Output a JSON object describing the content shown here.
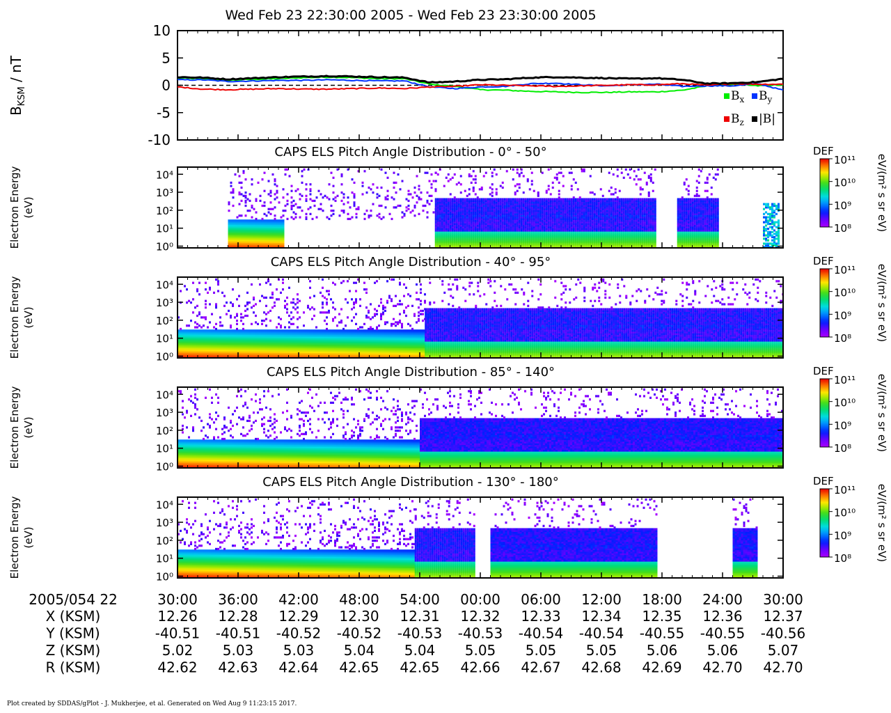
{
  "title": "Wed Feb 23 22:30:00 2005 - Wed Feb 23 23:30:00 2005",
  "footer": "Plot created by SDDAS/gPlot - J. Mukherjee, et al.  Generated on Wed Aug 9 11:23:15 2017.",
  "colors": {
    "bx": "#00ee00",
    "by": "#0033ff",
    "bz": "#ee0000",
    "bmag": "#000000"
  },
  "chart_data": [
    {
      "type": "line",
      "ylabel": "B_KSM / nT",
      "ylim": [
        -10,
        10
      ],
      "yticks": [
        10,
        5,
        0,
        -5,
        -10
      ],
      "zero_line": "dashed",
      "x_minutes": [
        0,
        2.5,
        5,
        7.5,
        10,
        12.5,
        15,
        17.5,
        20,
        22.5,
        25,
        27.5,
        30,
        32.5,
        35,
        37.5,
        40,
        42.5,
        45,
        47.5,
        50,
        52.5,
        55,
        57.5,
        60
      ],
      "series": [
        {
          "name": "B_x",
          "legend": "Bx",
          "values": [
            1.3,
            1.2,
            0.9,
            1.1,
            1.2,
            1.4,
            1.5,
            1.4,
            1.2,
            1.2,
            0.2,
            -0.2,
            -0.8,
            -0.9,
            -1.1,
            -1.2,
            -1.3,
            -1.3,
            -1.2,
            -1.2,
            -0.9,
            -0.1,
            0.2,
            -0.1,
            0.1
          ]
        },
        {
          "name": "B_y",
          "legend": "By",
          "values": [
            1.0,
            1.0,
            0.7,
            0.8,
            0.9,
            0.9,
            1.0,
            0.9,
            0.8,
            0.8,
            -0.3,
            -0.6,
            -0.3,
            -0.2,
            0.3,
            0.4,
            0.1,
            -0.1,
            0.1,
            0.2,
            -0.2,
            -0.1,
            -0.1,
            0.3,
            -0.9
          ]
        },
        {
          "name": "B_z",
          "legend": "Bz",
          "values": [
            -0.3,
            -0.7,
            -0.8,
            -0.7,
            -0.6,
            -0.7,
            -0.7,
            -0.6,
            -0.5,
            -0.6,
            -0.3,
            -0.2,
            0.1,
            0.0,
            -0.1,
            -0.2,
            -0.1,
            0.0,
            0.1,
            0.1,
            0.3,
            0.0,
            0.3,
            0.2,
            0.2
          ]
        },
        {
          "name": "|B|",
          "legend": "|B|",
          "values": [
            1.5,
            1.4,
            1.1,
            1.3,
            1.5,
            1.6,
            1.7,
            1.6,
            1.5,
            1.4,
            0.5,
            0.7,
            1.0,
            1.1,
            1.4,
            1.5,
            1.4,
            1.3,
            1.2,
            1.3,
            1.0,
            0.3,
            0.4,
            0.6,
            1.2
          ]
        }
      ]
    },
    {
      "type": "heatmap",
      "title": "CAPS ELS Pitch Angle Distribution - 0° - 50°",
      "ylabel": "Electron Energy (eV)",
      "yscale": "log",
      "ytick_labels": [
        "10⁰",
        "10¹",
        "10²",
        "10³",
        "10⁴"
      ],
      "ylim": [
        0.8,
        25000
      ],
      "colorbar": {
        "label": "DEF",
        "units": "eV/(m² s sr eV)",
        "ticks": [
          "10¹¹",
          "10¹⁰",
          "10⁹",
          "10⁸"
        ],
        "range": [
          8,
          11
        ]
      },
      "segments": [
        {
          "t": [
            5,
            25.5
          ],
          "shape": "sparse"
        },
        {
          "t": [
            25.5,
            47.3
          ],
          "shape": "sheet"
        },
        {
          "t": [
            49.5,
            53.5
          ],
          "shape": "sheet"
        },
        {
          "t": [
            58,
            59.5
          ],
          "shape": "streak"
        }
      ]
    },
    {
      "type": "heatmap",
      "title": "CAPS ELS Pitch Angle Distribution - 40° - 95°",
      "ylabel": "Electron Energy (eV)",
      "yscale": "log",
      "ytick_labels": [
        "10⁰",
        "10¹",
        "10²",
        "10³",
        "10⁴"
      ],
      "ylim": [
        0.8,
        25000
      ],
      "colorbar": {
        "label": "DEF",
        "units": "eV/(m² s sr eV)",
        "ticks": [
          "10¹¹",
          "10¹⁰",
          "10⁹",
          "10⁸"
        ],
        "range": [
          8,
          11
        ]
      },
      "segments": [
        {
          "t": [
            0,
            24.5
          ],
          "shape": "magnetosheath"
        },
        {
          "t": [
            24.5,
            60
          ],
          "shape": "sheet"
        }
      ]
    },
    {
      "type": "heatmap",
      "title": "CAPS ELS Pitch Angle Distribution - 85° - 140°",
      "ylabel": "Electron Energy (eV)",
      "yscale": "log",
      "ytick_labels": [
        "10⁰",
        "10¹",
        "10²",
        "10³",
        "10⁴"
      ],
      "ylim": [
        0.8,
        25000
      ],
      "colorbar": {
        "label": "DEF",
        "units": "eV/(m² s sr eV)",
        "ticks": [
          "10¹¹",
          "10¹⁰",
          "10⁹",
          "10⁸"
        ],
        "range": [
          8,
          11
        ]
      },
      "segments": [
        {
          "t": [
            0,
            24.0
          ],
          "shape": "magnetosheath"
        },
        {
          "t": [
            24.0,
            60
          ],
          "shape": "sheet"
        }
      ]
    },
    {
      "type": "heatmap",
      "title": "CAPS ELS Pitch Angle Distribution - 130° - 180°",
      "ylabel": "Electron Energy (eV)",
      "yscale": "log",
      "ytick_labels": [
        "10⁰",
        "10¹",
        "10²",
        "10³",
        "10⁴"
      ],
      "ylim": [
        0.8,
        25000
      ],
      "colorbar": {
        "label": "DEF",
        "units": "eV/(m² s sr eV)",
        "ticks": [
          "10¹¹",
          "10¹⁰",
          "10⁹",
          "10⁸"
        ],
        "range": [
          8,
          11
        ]
      },
      "segments": [
        {
          "t": [
            0,
            23.5
          ],
          "shape": "magnetosheath"
        },
        {
          "t": [
            23.5,
            29.5
          ],
          "shape": "sheet"
        },
        {
          "t": [
            31,
            47.5
          ],
          "shape": "sheet"
        },
        {
          "t": [
            55,
            57.3
          ],
          "shape": "sheet"
        }
      ]
    }
  ],
  "time_axis": {
    "row_label": "2005/054 22",
    "ticks": [
      "30:00",
      "36:00",
      "42:00",
      "48:00",
      "54:00",
      "00:00",
      "06:00",
      "12:00",
      "18:00",
      "24:00",
      "30:00"
    ]
  },
  "ephemeris": [
    {
      "label": "X (KSM)",
      "values": [
        "12.26",
        "12.28",
        "12.29",
        "12.30",
        "12.31",
        "12.32",
        "12.33",
        "12.34",
        "12.35",
        "12.36",
        "12.37"
      ]
    },
    {
      "label": "Y (KSM)",
      "values": [
        "-40.51",
        "-40.51",
        "-40.52",
        "-40.52",
        "-40.53",
        "-40.53",
        "-40.54",
        "-40.54",
        "-40.55",
        "-40.55",
        "-40.56"
      ]
    },
    {
      "label": "Z (KSM)",
      "values": [
        "5.02",
        "5.03",
        "5.03",
        "5.04",
        "5.04",
        "5.05",
        "5.05",
        "5.05",
        "5.06",
        "5.06",
        "5.07"
      ]
    },
    {
      "label": "R (KSM)",
      "values": [
        "42.62",
        "42.63",
        "42.64",
        "42.65",
        "42.65",
        "42.66",
        "42.67",
        "42.68",
        "42.69",
        "42.70",
        "42.70"
      ]
    }
  ]
}
